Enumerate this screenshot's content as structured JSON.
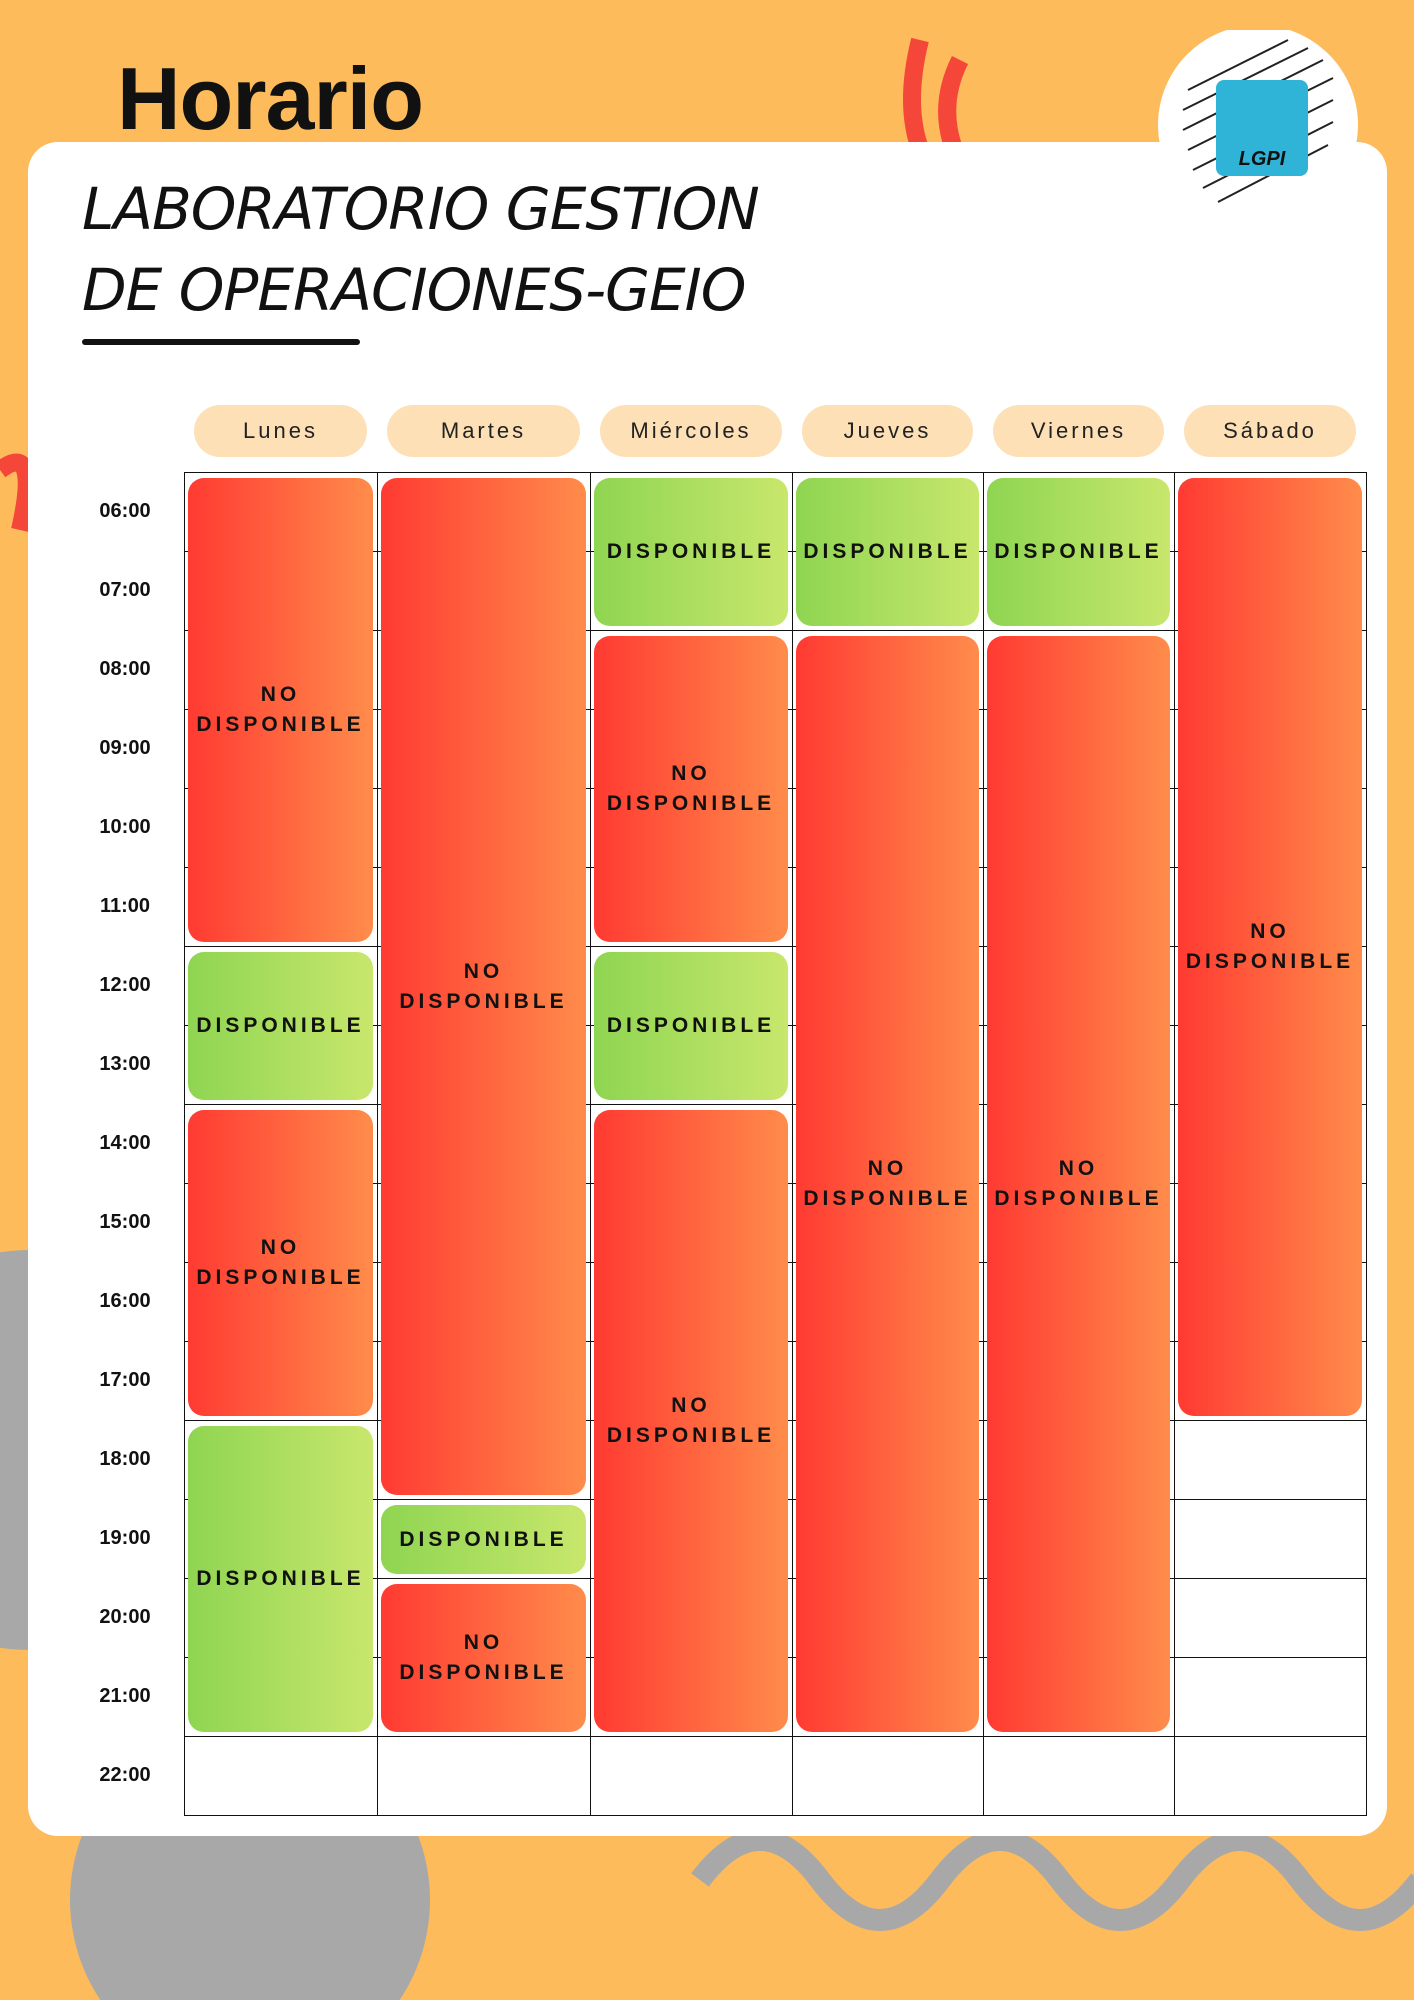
{
  "header": {
    "title": "Horario",
    "subtitle": [
      "LABORATORIO GESTION",
      "DE OPERACIONES-GEIO"
    ],
    "logo": "LGPI"
  },
  "days": [
    "Lunes",
    "Martes",
    "Miércoles",
    "Jueves",
    "Viernes",
    "Sábado"
  ],
  "times": [
    "06:00",
    "07:00",
    "08:00",
    "09:00",
    "10:00",
    "11:00",
    "12:00",
    "13:00",
    "14:00",
    "15:00",
    "16:00",
    "17:00",
    "18:00",
    "19:00",
    "20:00",
    "21:00",
    "22:00"
  ],
  "schedule": [
    {
      "blocks": [
        {
          "label": "NO DISPONIBLE",
          "hours": 6
        },
        {
          "label": "DISPONIBLE",
          "hours": 2
        },
        {
          "label": "NO DISPONIBLE",
          "hours": 4
        },
        {
          "label": "DISPONIBLE",
          "hours": 4
        }
      ]
    },
    {
      "blocks": [
        {
          "label": "NO DISPONIBLE",
          "hours": 13
        },
        {
          "label": "DISPONIBLE",
          "hours": 1
        },
        {
          "label": "NO DISPONIBLE",
          "hours": 2
        }
      ]
    },
    {
      "blocks": [
        {
          "label": "DISPONIBLE",
          "hours": 2
        },
        {
          "label": "NO DISPONIBLE",
          "hours": 4
        },
        {
          "label": "DISPONIBLE",
          "hours": 2
        },
        {
          "label": "NO DISPONIBLE",
          "hours": 8
        }
      ]
    },
    {
      "blocks": [
        {
          "label": "DISPONIBLE",
          "hours": 2
        },
        {
          "label": "NO DISPONIBLE",
          "hours": 14
        }
      ]
    },
    {
      "blocks": [
        {
          "label": "DISPONIBLE",
          "hours": 2
        },
        {
          "label": "NO DISPONIBLE",
          "hours": 14
        }
      ]
    },
    {
      "blocks": [
        {
          "label": "NO DISPONIBLE",
          "hours": 12
        }
      ]
    }
  ]
}
